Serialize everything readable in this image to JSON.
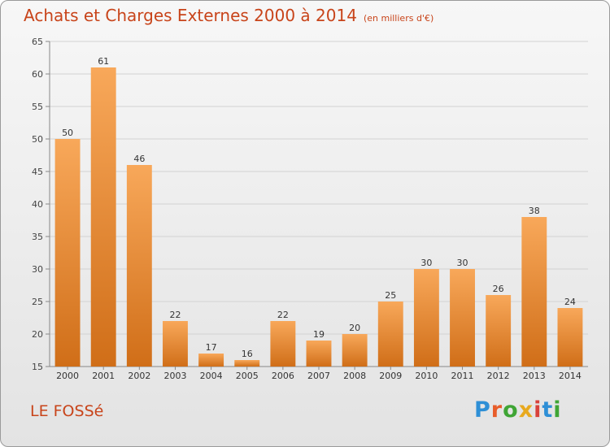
{
  "title": "Achats et Charges Externes 2000 à 2014",
  "unit_label": "(en milliers d'€)",
  "place_name": "LE FOSSé",
  "logo": {
    "text": "Proxiti",
    "letter_colors": [
      "#2e8fd6",
      "#e85d2a",
      "#3fa535",
      "#e8a91e",
      "#d8413b",
      "#2e8fd6",
      "#3fa535"
    ]
  },
  "colors": {
    "title": "#c8441a",
    "bar_top": "#f8a85a",
    "bar_bottom": "#d06e18"
  },
  "chart_data": {
    "type": "bar",
    "title": "Achats et Charges Externes 2000 à 2014",
    "subtitle": "(en milliers d'€)",
    "categories": [
      "2000",
      "2001",
      "2002",
      "2003",
      "2004",
      "2005",
      "2006",
      "2007",
      "2008",
      "2009",
      "2010",
      "2011",
      "2012",
      "2013",
      "2014"
    ],
    "values": [
      50,
      61,
      46,
      22,
      17,
      16,
      22,
      19,
      20,
      25,
      30,
      30,
      26,
      38,
      24
    ],
    "data_labels": [
      "50",
      "61",
      "46",
      "22",
      "17",
      "16",
      "22",
      "19",
      "20",
      "25",
      "30",
      "30",
      "26",
      "38",
      "24"
    ],
    "y_ticks": [
      "15",
      "20",
      "25",
      "30",
      "35",
      "40",
      "45",
      "50",
      "55",
      "60",
      "65"
    ],
    "ylim": [
      15,
      65
    ],
    "grid": true,
    "xlabel": "",
    "ylabel": ""
  }
}
